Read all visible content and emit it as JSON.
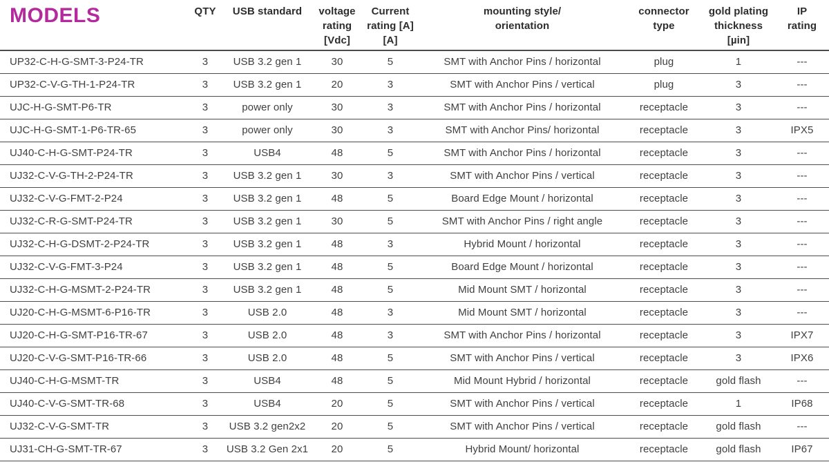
{
  "table": {
    "title_color": "#b42a9e",
    "text_color": "#3f3f3f",
    "line_color": "#4b4b4b",
    "headers": {
      "models": "MODELS",
      "qty": "QTY",
      "usb_standard": "USB standard",
      "voltage_rating": "voltage\nrating\n[Vdc]",
      "current_rating": "Current\nrating [A]\n[A]",
      "mounting": "mounting style/\norientation",
      "connector_type": "connector\ntype",
      "gold_plating": "gold plating\nthickness\n[µin]",
      "ip_rating": "IP\nrating"
    },
    "column_keys": [
      "model",
      "qty",
      "usb-standard",
      "voltage-rating",
      "current-rating",
      "mounting-style",
      "connector-type",
      "gold-plating",
      "ip-rating"
    ],
    "rows": [
      [
        "UP32-C-H-G-SMT-3-P24-TR",
        "3",
        "USB 3.2 gen 1",
        "30",
        "5",
        "SMT with Anchor Pins / horizontal",
        "plug",
        "1",
        "---"
      ],
      [
        "UP32-C-V-G-TH-1-P24-TR",
        "3",
        "USB 3.2 gen 1",
        "20",
        "3",
        "SMT with Anchor Pins / vertical",
        "plug",
        "3",
        "---"
      ],
      [
        "UJC-H-G-SMT-P6-TR",
        "3",
        "power only",
        "30",
        "3",
        "SMT with Anchor Pins / horizontal",
        "receptacle",
        "3",
        "---"
      ],
      [
        "UJC-H-G-SMT-1-P6-TR-65",
        "3",
        "power only",
        "30",
        "3",
        "SMT with Anchor Pins/ horizontal",
        "receptacle",
        "3",
        "IPX5"
      ],
      [
        "UJ40-C-H-G-SMT-P24-TR",
        "3",
        "USB4",
        "48",
        "5",
        "SMT with Anchor Pins / horizontal",
        "receptacle",
        "3",
        "---"
      ],
      [
        "UJ32-C-V-G-TH-2-P24-TR",
        "3",
        "USB 3.2 gen 1",
        "30",
        "3",
        "SMT with Anchor Pins / vertical",
        "receptacle",
        "3",
        "---"
      ],
      [
        "UJ32-C-V-G-FMT-2-P24",
        "3",
        "USB 3.2 gen 1",
        "48",
        "5",
        "Board Edge Mount / horizontal",
        "receptacle",
        "3",
        "---"
      ],
      [
        "UJ32-C-R-G-SMT-P24-TR",
        "3",
        "USB 3.2 gen 1",
        "30",
        "5",
        "SMT with Anchor Pins / right angle",
        "receptacle",
        "3",
        "---"
      ],
      [
        "UJ32-C-H-G-DSMT-2-P24-TR",
        "3",
        "USB 3.2 gen 1",
        "48",
        "3",
        "Hybrid Mount / horizontal",
        "receptacle",
        "3",
        "---"
      ],
      [
        "UJ32-C-V-G-FMT-3-P24",
        "3",
        "USB 3.2 gen 1",
        "48",
        "5",
        "Board Edge Mount / horizontal",
        "receptacle",
        "3",
        "---"
      ],
      [
        "UJ32-C-H-G-MSMT-2-P24-TR",
        "3",
        "USB 3.2 gen 1",
        "48",
        "5",
        "Mid Mount SMT / horizontal",
        "receptacle",
        "3",
        "---"
      ],
      [
        "UJ20-C-H-G-MSMT-6-P16-TR",
        "3",
        "USB 2.0",
        "48",
        "3",
        "Mid Mount SMT / horizontal",
        "receptacle",
        "3",
        "---"
      ],
      [
        "UJ20-C-H-G-SMT-P16-TR-67",
        "3",
        "USB 2.0",
        "48",
        "3",
        "SMT with Anchor Pins / horizontal",
        "receptacle",
        "3",
        "IPX7"
      ],
      [
        "UJ20-C-V-G-SMT-P16-TR-66",
        "3",
        "USB 2.0",
        "48",
        "5",
        "SMT with Anchor Pins / vertical",
        "receptacle",
        "3",
        "IPX6"
      ],
      [
        "UJ40-C-H-G-MSMT-TR",
        "3",
        "USB4",
        "48",
        "5",
        "Mid Mount Hybrid / horizontal",
        "receptacle",
        "gold flash",
        "---"
      ],
      [
        "UJ40-C-V-G-SMT-TR-68",
        "3",
        "USB4",
        "20",
        "5",
        "SMT with Anchor Pins / vertical",
        "receptacle",
        "1",
        "IP68"
      ],
      [
        "UJ32-C-V-G-SMT-TR",
        "3",
        "USB 3.2 gen2x2",
        "20",
        "5",
        "SMT with Anchor Pins / vertical",
        "receptacle",
        "gold flash",
        "---"
      ],
      [
        "UJ31-CH-G-SMT-TR-67",
        "3",
        "USB 3.2 Gen 2x1",
        "20",
        "5",
        "Hybrid Mount/ horizontal",
        "receptacle",
        "gold flash",
        "IP67"
      ]
    ]
  }
}
